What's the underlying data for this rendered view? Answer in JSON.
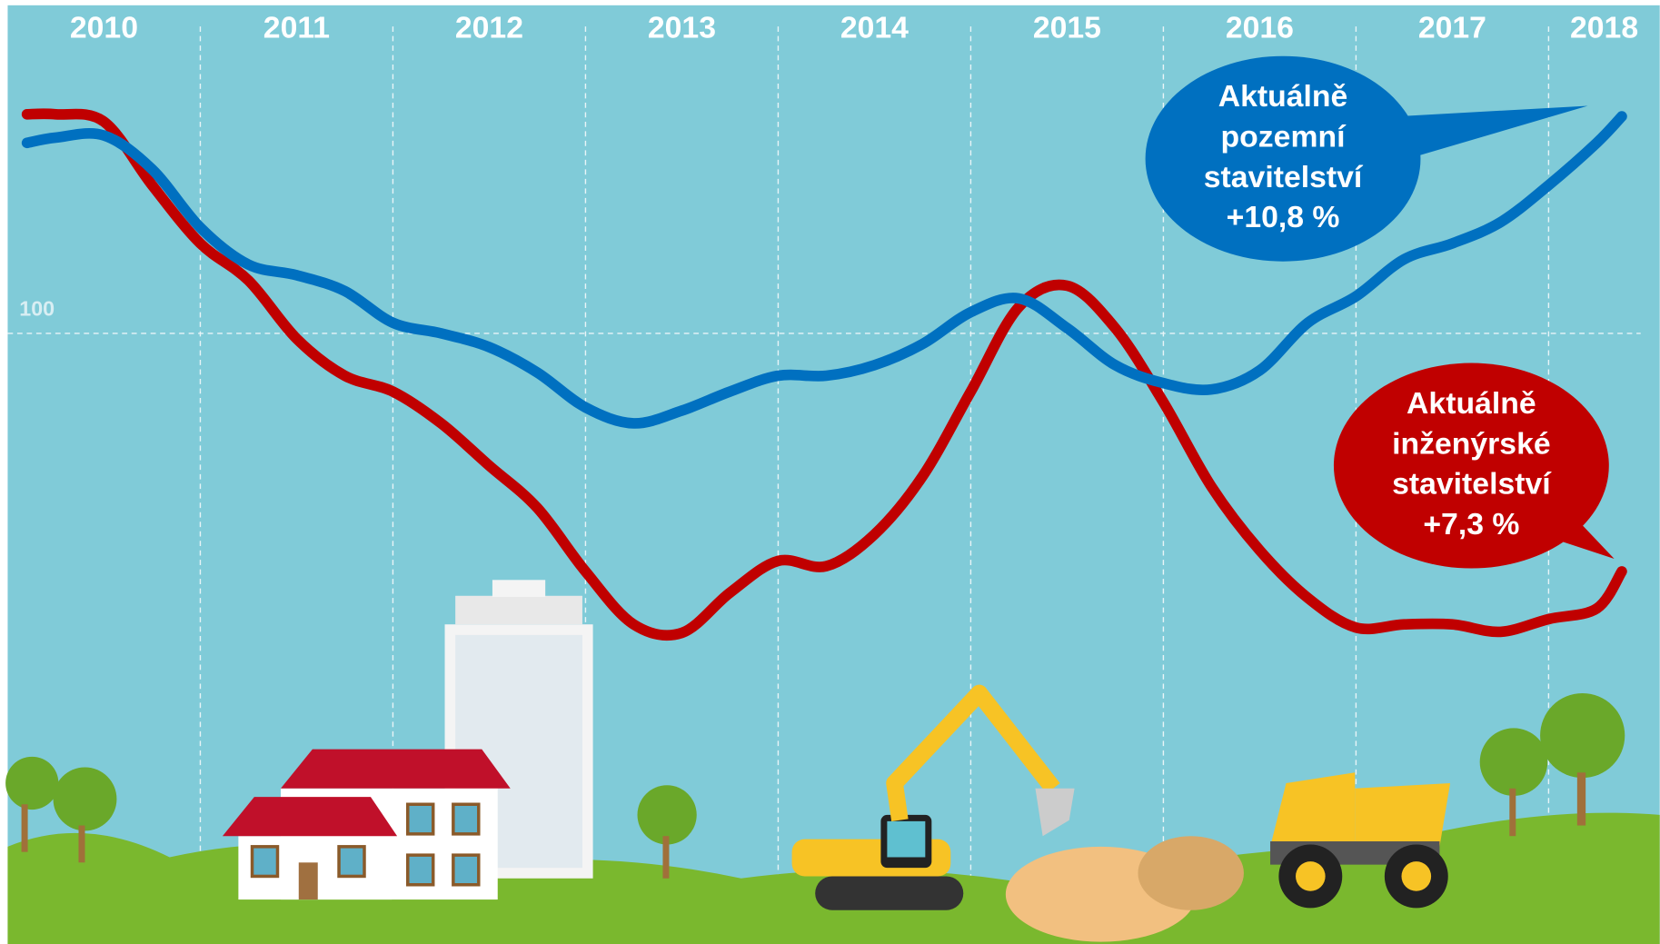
{
  "chart_data": {
    "type": "line",
    "x": [
      2010.1,
      2010.25,
      2010.5,
      2010.75,
      2011.0,
      2011.25,
      2011.5,
      2011.75,
      2012.0,
      2012.25,
      2012.5,
      2012.75,
      2013.0,
      2013.25,
      2013.5,
      2013.75,
      2014.0,
      2014.25,
      2014.5,
      2014.75,
      2015.0,
      2015.25,
      2015.5,
      2015.75,
      2016.0,
      2016.25,
      2016.5,
      2016.75,
      2017.0,
      2017.25,
      2017.5,
      2017.75,
      2018.0,
      2018.25,
      2018.38
    ],
    "series": [
      {
        "color": "#0070c0",
        "values": [
          118.0,
          118.5,
          118.7,
          115.5,
          110.0,
          106.5,
          105.5,
          104.0,
          101.0,
          100.0,
          98.7,
          96.3,
          93.0,
          91.5,
          92.7,
          94.5,
          96.0,
          96.0,
          97.0,
          99.0,
          102.0,
          103.3,
          100.5,
          97.0,
          95.3,
          94.7,
          96.5,
          101.0,
          103.5,
          107.0,
          108.5,
          110.5,
          114.0,
          118.0,
          120.5
        ]
      },
      {
        "color": "#c00000",
        "values": [
          120.7,
          120.7,
          120.0,
          114.0,
          108.5,
          105.0,
          99.5,
          96.0,
          94.5,
          91.5,
          87.5,
          83.5,
          77.5,
          72.5,
          71.7,
          75.5,
          78.5,
          78.0,
          81.0,
          86.5,
          94.5,
          102.5,
          104.5,
          100.5,
          93.5,
          85.5,
          79.5,
          75.0,
          72.2,
          72.5,
          72.5,
          71.8,
          73.0,
          74.0,
          77.5
        ]
      }
    ],
    "xlim": [
      2010,
      2018.6
    ],
    "xticks": [
      2010,
      2011,
      2012,
      2013,
      2014,
      2015,
      2016,
      2017,
      2018
    ],
    "ylim": [
      60,
      125
    ],
    "yticks": [
      100
    ],
    "grid": true,
    "annotations": [
      {
        "color": "#0070c0",
        "lines": [
          "Aktuálně",
          "pozemní",
          "stavitelství",
          "+10,8 %"
        ]
      },
      {
        "color": "#c00000",
        "lines": [
          "Aktuálně",
          "inženýrské",
          "stavitelství",
          "+7,3 %"
        ]
      }
    ]
  }
}
